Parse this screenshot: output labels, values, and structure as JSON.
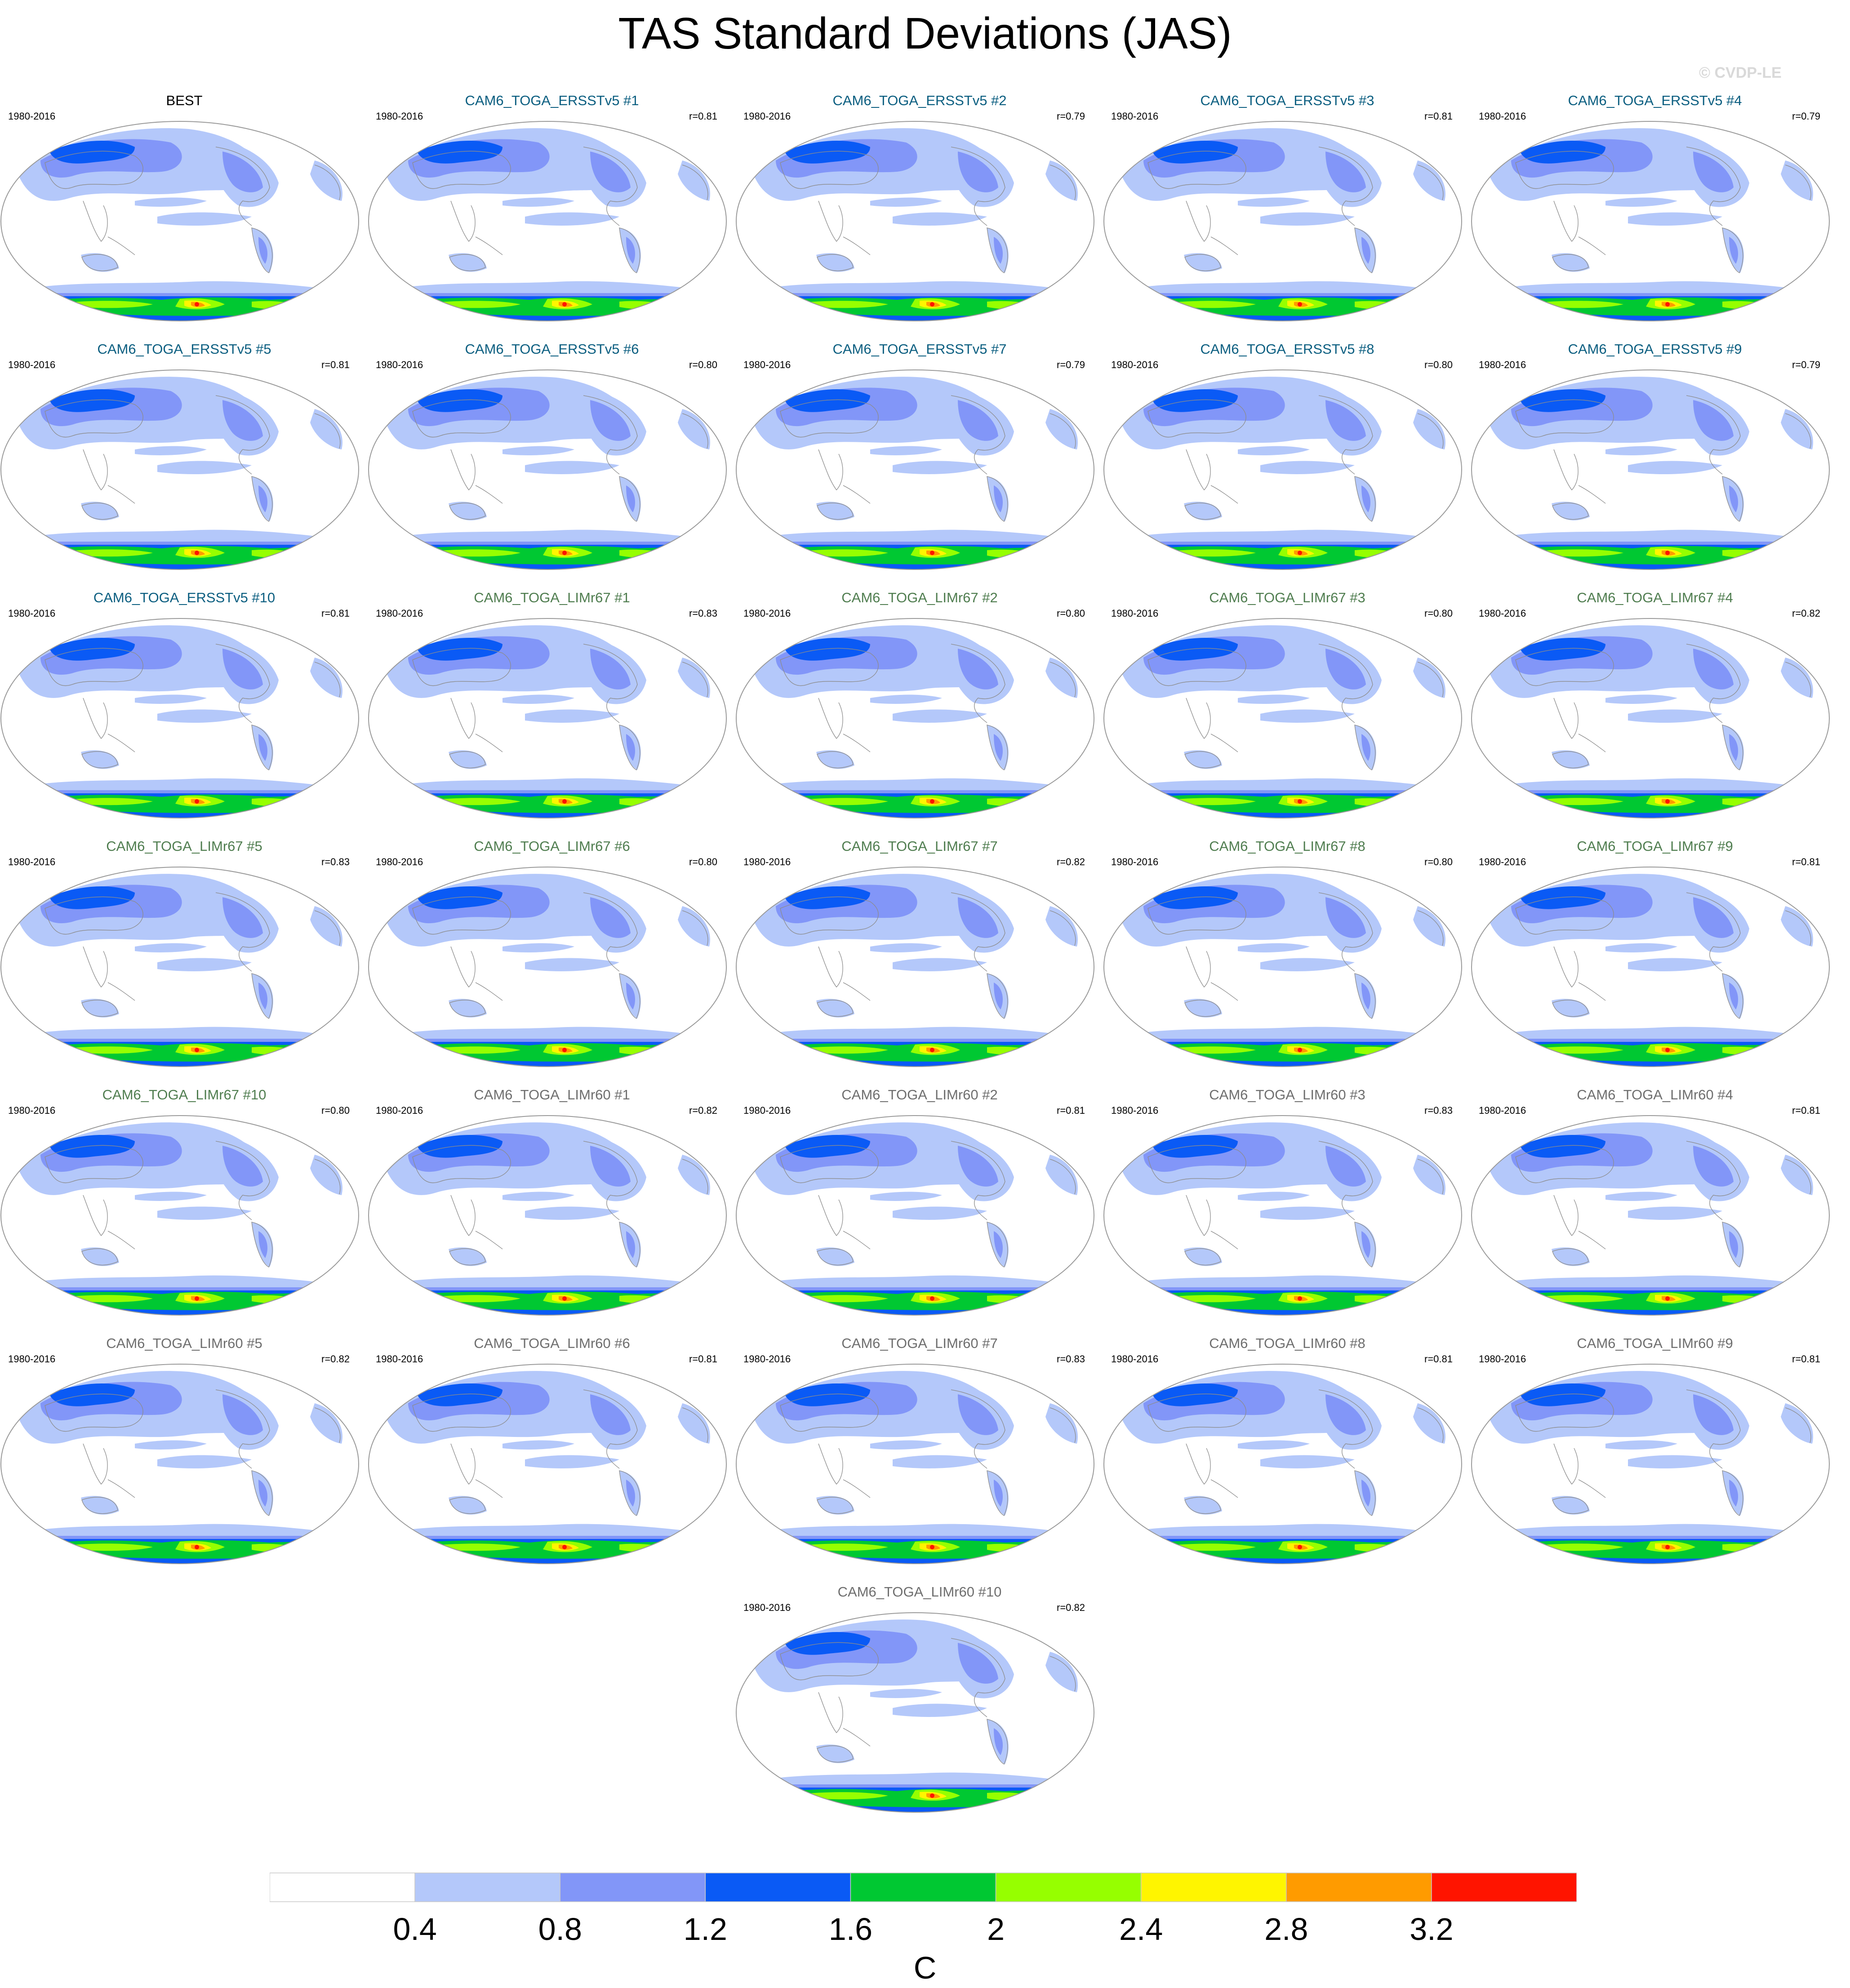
{
  "title": "TAS Standard Deviations (JAS)",
  "watermark": "© CVDP-LE",
  "title_colors": {
    "obs": "#000000",
    "ERSSTv5": "#0b5e80",
    "LIMr67": "#4f7d4f",
    "LIMr60": "#6e6e6e"
  },
  "panels": [
    {
      "title": "BEST",
      "group": "obs",
      "period": "1980-2016",
      "corr": ""
    },
    {
      "title": "CAM6_TOGA_ERSSTv5 #1",
      "group": "ERSSTv5",
      "period": "1980-2016",
      "corr": "r=0.81"
    },
    {
      "title": "CAM6_TOGA_ERSSTv5 #2",
      "group": "ERSSTv5",
      "period": "1980-2016",
      "corr": "r=0.79"
    },
    {
      "title": "CAM6_TOGA_ERSSTv5 #3",
      "group": "ERSSTv5",
      "period": "1980-2016",
      "corr": "r=0.81"
    },
    {
      "title": "CAM6_TOGA_ERSSTv5 #4",
      "group": "ERSSTv5",
      "period": "1980-2016",
      "corr": "r=0.79"
    },
    {
      "title": "CAM6_TOGA_ERSSTv5 #5",
      "group": "ERSSTv5",
      "period": "1980-2016",
      "corr": "r=0.81"
    },
    {
      "title": "CAM6_TOGA_ERSSTv5 #6",
      "group": "ERSSTv5",
      "period": "1980-2016",
      "corr": "r=0.80"
    },
    {
      "title": "CAM6_TOGA_ERSSTv5 #7",
      "group": "ERSSTv5",
      "period": "1980-2016",
      "corr": "r=0.79"
    },
    {
      "title": "CAM6_TOGA_ERSSTv5 #8",
      "group": "ERSSTv5",
      "period": "1980-2016",
      "corr": "r=0.80"
    },
    {
      "title": "CAM6_TOGA_ERSSTv5 #9",
      "group": "ERSSTv5",
      "period": "1980-2016",
      "corr": "r=0.79"
    },
    {
      "title": "CAM6_TOGA_ERSSTv5 #10",
      "group": "ERSSTv5",
      "period": "1980-2016",
      "corr": "r=0.81"
    },
    {
      "title": "CAM6_TOGA_LIMr67 #1",
      "group": "LIMr67",
      "period": "1980-2016",
      "corr": "r=0.83"
    },
    {
      "title": "CAM6_TOGA_LIMr67 #2",
      "group": "LIMr67",
      "period": "1980-2016",
      "corr": "r=0.80"
    },
    {
      "title": "CAM6_TOGA_LIMr67 #3",
      "group": "LIMr67",
      "period": "1980-2016",
      "corr": "r=0.80"
    },
    {
      "title": "CAM6_TOGA_LIMr67 #4",
      "group": "LIMr67",
      "period": "1980-2016",
      "corr": "r=0.82"
    },
    {
      "title": "CAM6_TOGA_LIMr67 #5",
      "group": "LIMr67",
      "period": "1980-2016",
      "corr": "r=0.83"
    },
    {
      "title": "CAM6_TOGA_LIMr67 #6",
      "group": "LIMr67",
      "period": "1980-2016",
      "corr": "r=0.80"
    },
    {
      "title": "CAM6_TOGA_LIMr67 #7",
      "group": "LIMr67",
      "period": "1980-2016",
      "corr": "r=0.82"
    },
    {
      "title": "CAM6_TOGA_LIMr67 #8",
      "group": "LIMr67",
      "period": "1980-2016",
      "corr": "r=0.80"
    },
    {
      "title": "CAM6_TOGA_LIMr67 #9",
      "group": "LIMr67",
      "period": "1980-2016",
      "corr": "r=0.81"
    },
    {
      "title": "CAM6_TOGA_LIMr67 #10",
      "group": "LIMr67",
      "period": "1980-2016",
      "corr": "r=0.80"
    },
    {
      "title": "CAM6_TOGA_LIMr60 #1",
      "group": "LIMr60",
      "period": "1980-2016",
      "corr": "r=0.82"
    },
    {
      "title": "CAM6_TOGA_LIMr60 #2",
      "group": "LIMr60",
      "period": "1980-2016",
      "corr": "r=0.81"
    },
    {
      "title": "CAM6_TOGA_LIMr60 #3",
      "group": "LIMr60",
      "period": "1980-2016",
      "corr": "r=0.83"
    },
    {
      "title": "CAM6_TOGA_LIMr60 #4",
      "group": "LIMr60",
      "period": "1980-2016",
      "corr": "r=0.81"
    },
    {
      "title": "CAM6_TOGA_LIMr60 #5",
      "group": "LIMr60",
      "period": "1980-2016",
      "corr": "r=0.82"
    },
    {
      "title": "CAM6_TOGA_LIMr60 #6",
      "group": "LIMr60",
      "period": "1980-2016",
      "corr": "r=0.81"
    },
    {
      "title": "CAM6_TOGA_LIMr60 #7",
      "group": "LIMr60",
      "period": "1980-2016",
      "corr": "r=0.83"
    },
    {
      "title": "CAM6_TOGA_LIMr60 #8",
      "group": "LIMr60",
      "period": "1980-2016",
      "corr": "r=0.81"
    },
    {
      "title": "CAM6_TOGA_LIMr60 #9",
      "group": "LIMr60",
      "period": "1980-2016",
      "corr": "r=0.81"
    },
    {
      "title": "CAM6_TOGA_LIMr60 #10",
      "group": "LIMr60",
      "period": "1980-2016",
      "corr": "r=0.82"
    }
  ],
  "colorbar": {
    "unit": "C",
    "ticks": [
      "0.4",
      "0.8",
      "1.2",
      "1.6",
      "2",
      "2.4",
      "2.8",
      "3.2"
    ],
    "colors": [
      "#ffffff",
      "#b4c8fa",
      "#8296f8",
      "#0a5af5",
      "#00c832",
      "#96ff00",
      "#fff500",
      "#ff9b00",
      "#ff1400"
    ]
  }
}
